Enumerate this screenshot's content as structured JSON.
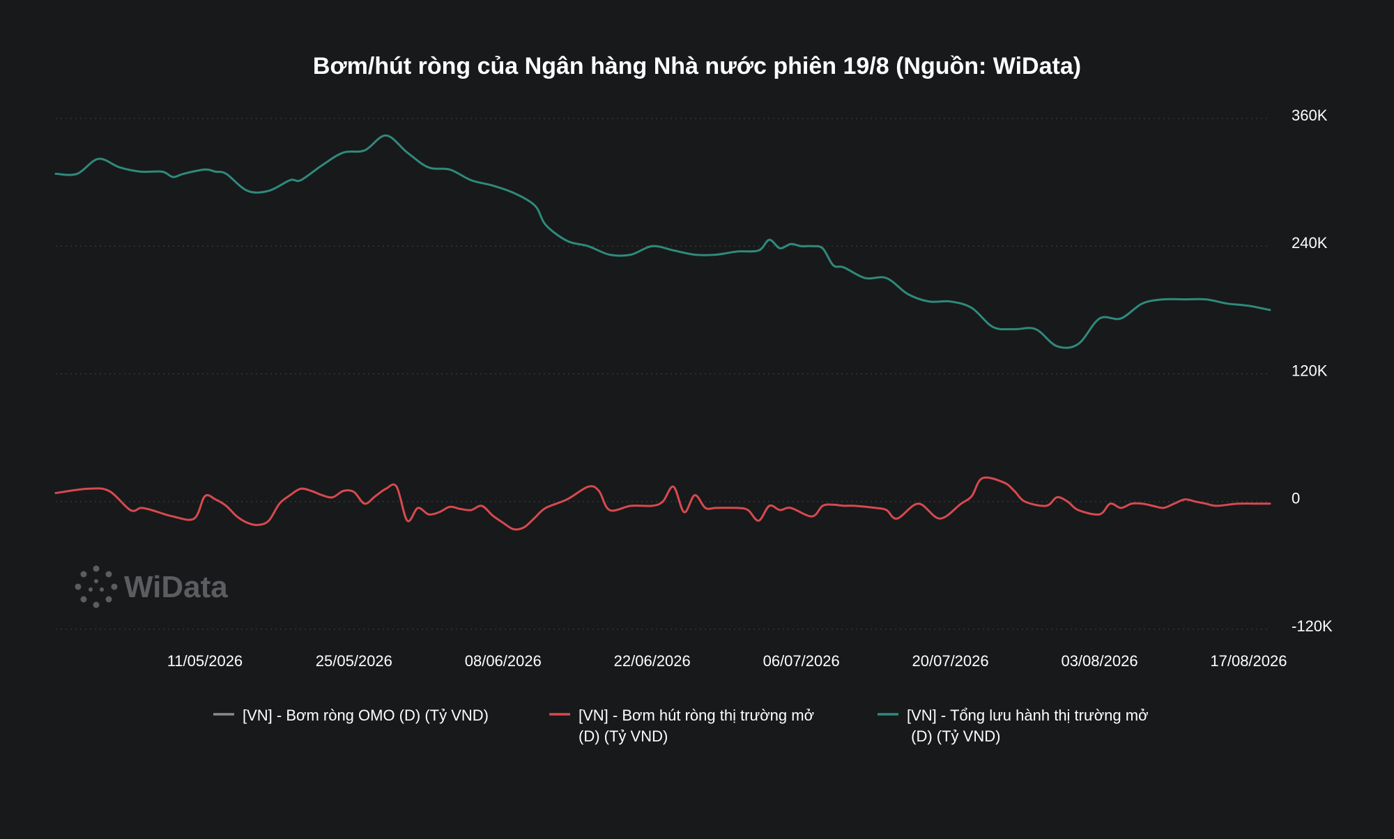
{
  "chart_data": {
    "type": "line",
    "title": "Bơm/hút ròng của Ngân hàng Nhà nước phiên 19/8 (Nguồn: WiData)",
    "xlabel": "",
    "ylabel": "",
    "ylim": [
      -120000,
      360000
    ],
    "yticks": [
      360000,
      240000,
      120000,
      0,
      -120000
    ],
    "ytick_labels": [
      "360K",
      "240K",
      "120K",
      "0",
      "-120K"
    ],
    "x_range": [
      "2026-04-27",
      "2026-08-19"
    ],
    "xtick_dates": [
      "2026-05-11",
      "2026-05-25",
      "2026-06-08",
      "2026-06-22",
      "2026-07-06",
      "2026-07-20",
      "2026-08-03",
      "2026-08-17"
    ],
    "xtick_labels": [
      "11/05/2026",
      "25/05/2026",
      "08/06/2026",
      "22/06/2026",
      "06/07/2026",
      "20/07/2026",
      "03/08/2026",
      "17/08/2026"
    ],
    "grid": true,
    "legend_placement": "bottom",
    "series": [
      {
        "name": "[VN] - Bơm ròng OMO (D) (Tỷ VND)",
        "color": "#8a8a8a",
        "x": [],
        "y": []
      },
      {
        "name": "[VN] - Bơm hút ròng thị trường mở (D) (Tỷ VND)",
        "name_lines": [
          "[VN] - Bơm hút ròng thị trường mở",
          "(D) (Tỷ VND)"
        ],
        "color": "#d64a4f",
        "x": [
          "2026-04-27",
          "2026-04-30",
          "2026-05-02",
          "2026-05-04",
          "2026-05-05",
          "2026-05-06",
          "2026-05-08",
          "2026-05-10",
          "2026-05-11",
          "2026-05-12",
          "2026-05-13",
          "2026-05-14",
          "2026-05-15",
          "2026-05-16",
          "2026-05-17",
          "2026-05-18",
          "2026-05-19",
          "2026-05-20",
          "2026-05-21",
          "2026-05-22",
          "2026-05-23",
          "2026-05-24",
          "2026-05-25",
          "2026-05-26",
          "2026-05-27",
          "2026-05-28",
          "2026-05-29",
          "2026-05-30",
          "2026-05-31",
          "2026-06-01",
          "2026-06-02",
          "2026-06-03",
          "2026-06-04",
          "2026-06-05",
          "2026-06-06",
          "2026-06-07",
          "2026-06-08",
          "2026-06-09",
          "2026-06-10",
          "2026-06-11",
          "2026-06-12",
          "2026-06-14",
          "2026-06-16",
          "2026-06-17",
          "2026-06-18",
          "2026-06-20",
          "2026-06-22",
          "2026-06-23",
          "2026-06-24",
          "2026-06-25",
          "2026-06-26",
          "2026-06-27",
          "2026-06-28",
          "2026-06-30",
          "2026-07-01",
          "2026-07-02",
          "2026-07-03",
          "2026-07-04",
          "2026-07-05",
          "2026-07-07",
          "2026-07-08",
          "2026-07-09",
          "2026-07-10",
          "2026-07-11",
          "2026-07-13",
          "2026-07-14",
          "2026-07-15",
          "2026-07-17",
          "2026-07-19",
          "2026-07-21",
          "2026-07-22",
          "2026-07-23",
          "2026-07-25",
          "2026-07-26",
          "2026-07-27",
          "2026-07-29",
          "2026-07-30",
          "2026-07-31",
          "2026-08-01",
          "2026-08-03",
          "2026-08-04",
          "2026-08-05",
          "2026-08-06",
          "2026-08-07",
          "2026-08-08",
          "2026-08-09",
          "2026-08-10",
          "2026-08-11",
          "2026-08-12",
          "2026-08-13",
          "2026-08-14",
          "2026-08-16",
          "2026-08-18",
          "2026-08-19"
        ],
        "y": [
          8000,
          12000,
          10000,
          -8000,
          -6000,
          -8000,
          -14000,
          -16000,
          5000,
          2000,
          -4000,
          -14000,
          -20000,
          -22000,
          -18000,
          -2000,
          6000,
          12000,
          10000,
          6000,
          4000,
          10000,
          9000,
          -2000,
          5000,
          12000,
          14000,
          -18000,
          -6000,
          -12000,
          -10000,
          -5000,
          -7000,
          -8000,
          -4000,
          -13000,
          -20000,
          -26000,
          -24000,
          -15000,
          -6000,
          2000,
          14000,
          10000,
          -8000,
          -4000,
          -4000,
          0,
          14000,
          -10000,
          6000,
          -6000,
          -6000,
          -6000,
          -8000,
          -18000,
          -4000,
          -8000,
          -6000,
          -14000,
          -4000,
          -3000,
          -4000,
          -4000,
          -6000,
          -8000,
          -16000,
          -2000,
          -16000,
          -2000,
          5000,
          22000,
          18000,
          10000,
          0,
          -4000,
          4000,
          0,
          -8000,
          -12000,
          -2000,
          -6000,
          -2000,
          -2000,
          -4000,
          -6000,
          -2000,
          2000,
          0,
          -2000,
          -4000,
          -2000,
          -2000,
          -2000
        ]
      },
      {
        "name": "[VN] - Tổng lưu hành thị trường mở (D) (Tỷ VND)",
        "name_lines": [
          "[VN] - Tổng lưu hành thị trường mở",
          " (D) (Tỷ VND)"
        ],
        "color": "#2f8a7c",
        "x": [
          "2026-04-27",
          "2026-04-29",
          "2026-05-01",
          "2026-05-03",
          "2026-05-05",
          "2026-05-07",
          "2026-05-08",
          "2026-05-09",
          "2026-05-11",
          "2026-05-12",
          "2026-05-13",
          "2026-05-15",
          "2026-05-17",
          "2026-05-19",
          "2026-05-20",
          "2026-05-22",
          "2026-05-24",
          "2026-05-26",
          "2026-05-28",
          "2026-05-30",
          "2026-06-01",
          "2026-06-03",
          "2026-06-05",
          "2026-06-07",
          "2026-06-09",
          "2026-06-11",
          "2026-06-12",
          "2026-06-14",
          "2026-06-16",
          "2026-06-18",
          "2026-06-20",
          "2026-06-22",
          "2026-06-24",
          "2026-06-26",
          "2026-06-28",
          "2026-06-30",
          "2026-07-02",
          "2026-07-03",
          "2026-07-04",
          "2026-07-05",
          "2026-07-06",
          "2026-07-07",
          "2026-07-08",
          "2026-07-09",
          "2026-07-10",
          "2026-07-12",
          "2026-07-14",
          "2026-07-16",
          "2026-07-18",
          "2026-07-20",
          "2026-07-22",
          "2026-07-24",
          "2026-07-26",
          "2026-07-28",
          "2026-07-30",
          "2026-08-01",
          "2026-08-03",
          "2026-08-05",
          "2026-08-07",
          "2026-08-09",
          "2026-08-11",
          "2026-08-13",
          "2026-08-15",
          "2026-08-17",
          "2026-08-19"
        ],
        "y": [
          308000,
          308000,
          322000,
          314000,
          310000,
          310000,
          305000,
          308000,
          312000,
          310000,
          308000,
          292000,
          292000,
          302000,
          302000,
          316000,
          328000,
          330000,
          344000,
          328000,
          314000,
          312000,
          302000,
          297000,
          290000,
          278000,
          260000,
          245000,
          240000,
          232000,
          232000,
          240000,
          236000,
          232000,
          232000,
          235000,
          236000,
          246000,
          238000,
          242000,
          240000,
          240000,
          238000,
          222000,
          220000,
          210000,
          210000,
          195000,
          188000,
          188000,
          182000,
          164000,
          162000,
          162000,
          146000,
          148000,
          172000,
          172000,
          186000,
          190000,
          190000,
          190000,
          186000,
          184000,
          180000
        ]
      }
    ]
  },
  "watermark": {
    "text": "WiData"
  }
}
